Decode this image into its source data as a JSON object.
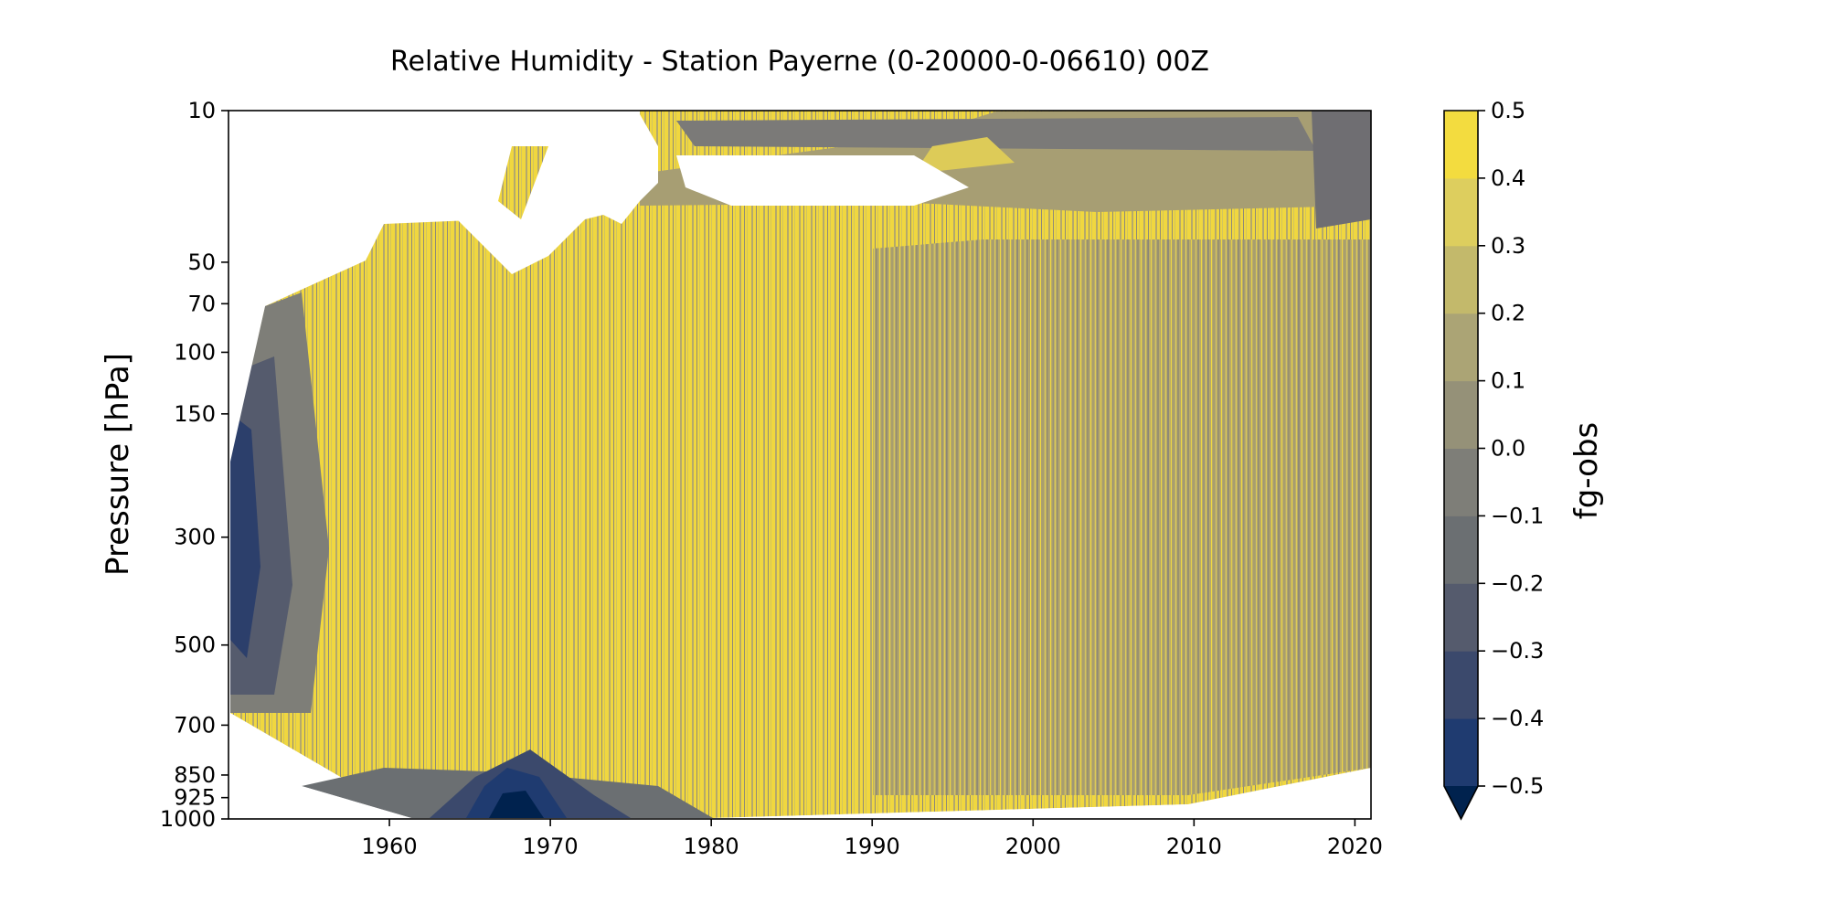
{
  "chart_data": {
    "type": "heatmap",
    "subtype": "filled-contour",
    "title": "Relative Humidity - Station Payerne (0-20000-0-06610) 00Z",
    "xlabel": "",
    "ylabel": "Pressure [hPa]",
    "x_ticks": [
      1960,
      1970,
      1980,
      1990,
      2000,
      2010,
      2020
    ],
    "xlim": [
      1950,
      2021
    ],
    "y_ticks": [
      10,
      50,
      70,
      100,
      150,
      300,
      500,
      700,
      850,
      925,
      1000
    ],
    "y_tick_labels": [
      "10",
      "50",
      "70",
      "100",
      "150",
      "300",
      "500",
      "700",
      "850",
      "925",
      "1000"
    ],
    "ylim": [
      1000,
      10
    ],
    "y_scale": "nonlinear (pressure levels, inverted)",
    "colormap": "cividis",
    "colorbar": {
      "label": "fg-obs",
      "levels": [
        -0.5,
        -0.4,
        -0.3,
        -0.2,
        -0.1,
        0.0,
        0.1,
        0.2,
        0.3,
        0.4,
        0.5
      ],
      "tick_labels": [
        "0.5",
        "0.4",
        "0.3",
        "0.2",
        "0.1",
        "0.0",
        "−0.1",
        "−0.2",
        "−0.3",
        "−0.4",
        "−0.5"
      ],
      "extend": "min",
      "colors": [
        "#00224e",
        "#1f3b70",
        "#3b496c",
        "#555b6d",
        "#6b6f72",
        "#7e7e78",
        "#959178",
        "#aba475",
        "#c3b96b",
        "#ddce5e",
        "#f3dc3f"
      ]
    },
    "dominant_value_by_period": [
      {
        "period": "1957-1990",
        "value_range": [
          0.4,
          0.5
        ]
      },
      {
        "period": "1990-2021",
        "value_range": [
          0.1,
          0.4
        ]
      }
    ],
    "regions": [
      {
        "name": "lower-left minimum",
        "years": [
          1962,
          1972
        ],
        "pressure_hPa": [
          925,
          1000
        ],
        "value": -0.5
      },
      {
        "name": "western flank",
        "years": [
          1950,
          1957
        ],
        "pressure_hPa": [
          300,
          850
        ],
        "value": -0.3
      },
      {
        "name": "upper-level band",
        "years": [
          1976,
          2021
        ],
        "pressure_hPa": [
          50,
          150
        ],
        "value": 0.2
      },
      {
        "name": "missing data (white)",
        "years": [
          1958,
          1990
        ],
        "pressure_hPa": [
          10,
          150
        ],
        "value": null
      }
    ],
    "grid": false,
    "legend": "colorbar-right"
  }
}
